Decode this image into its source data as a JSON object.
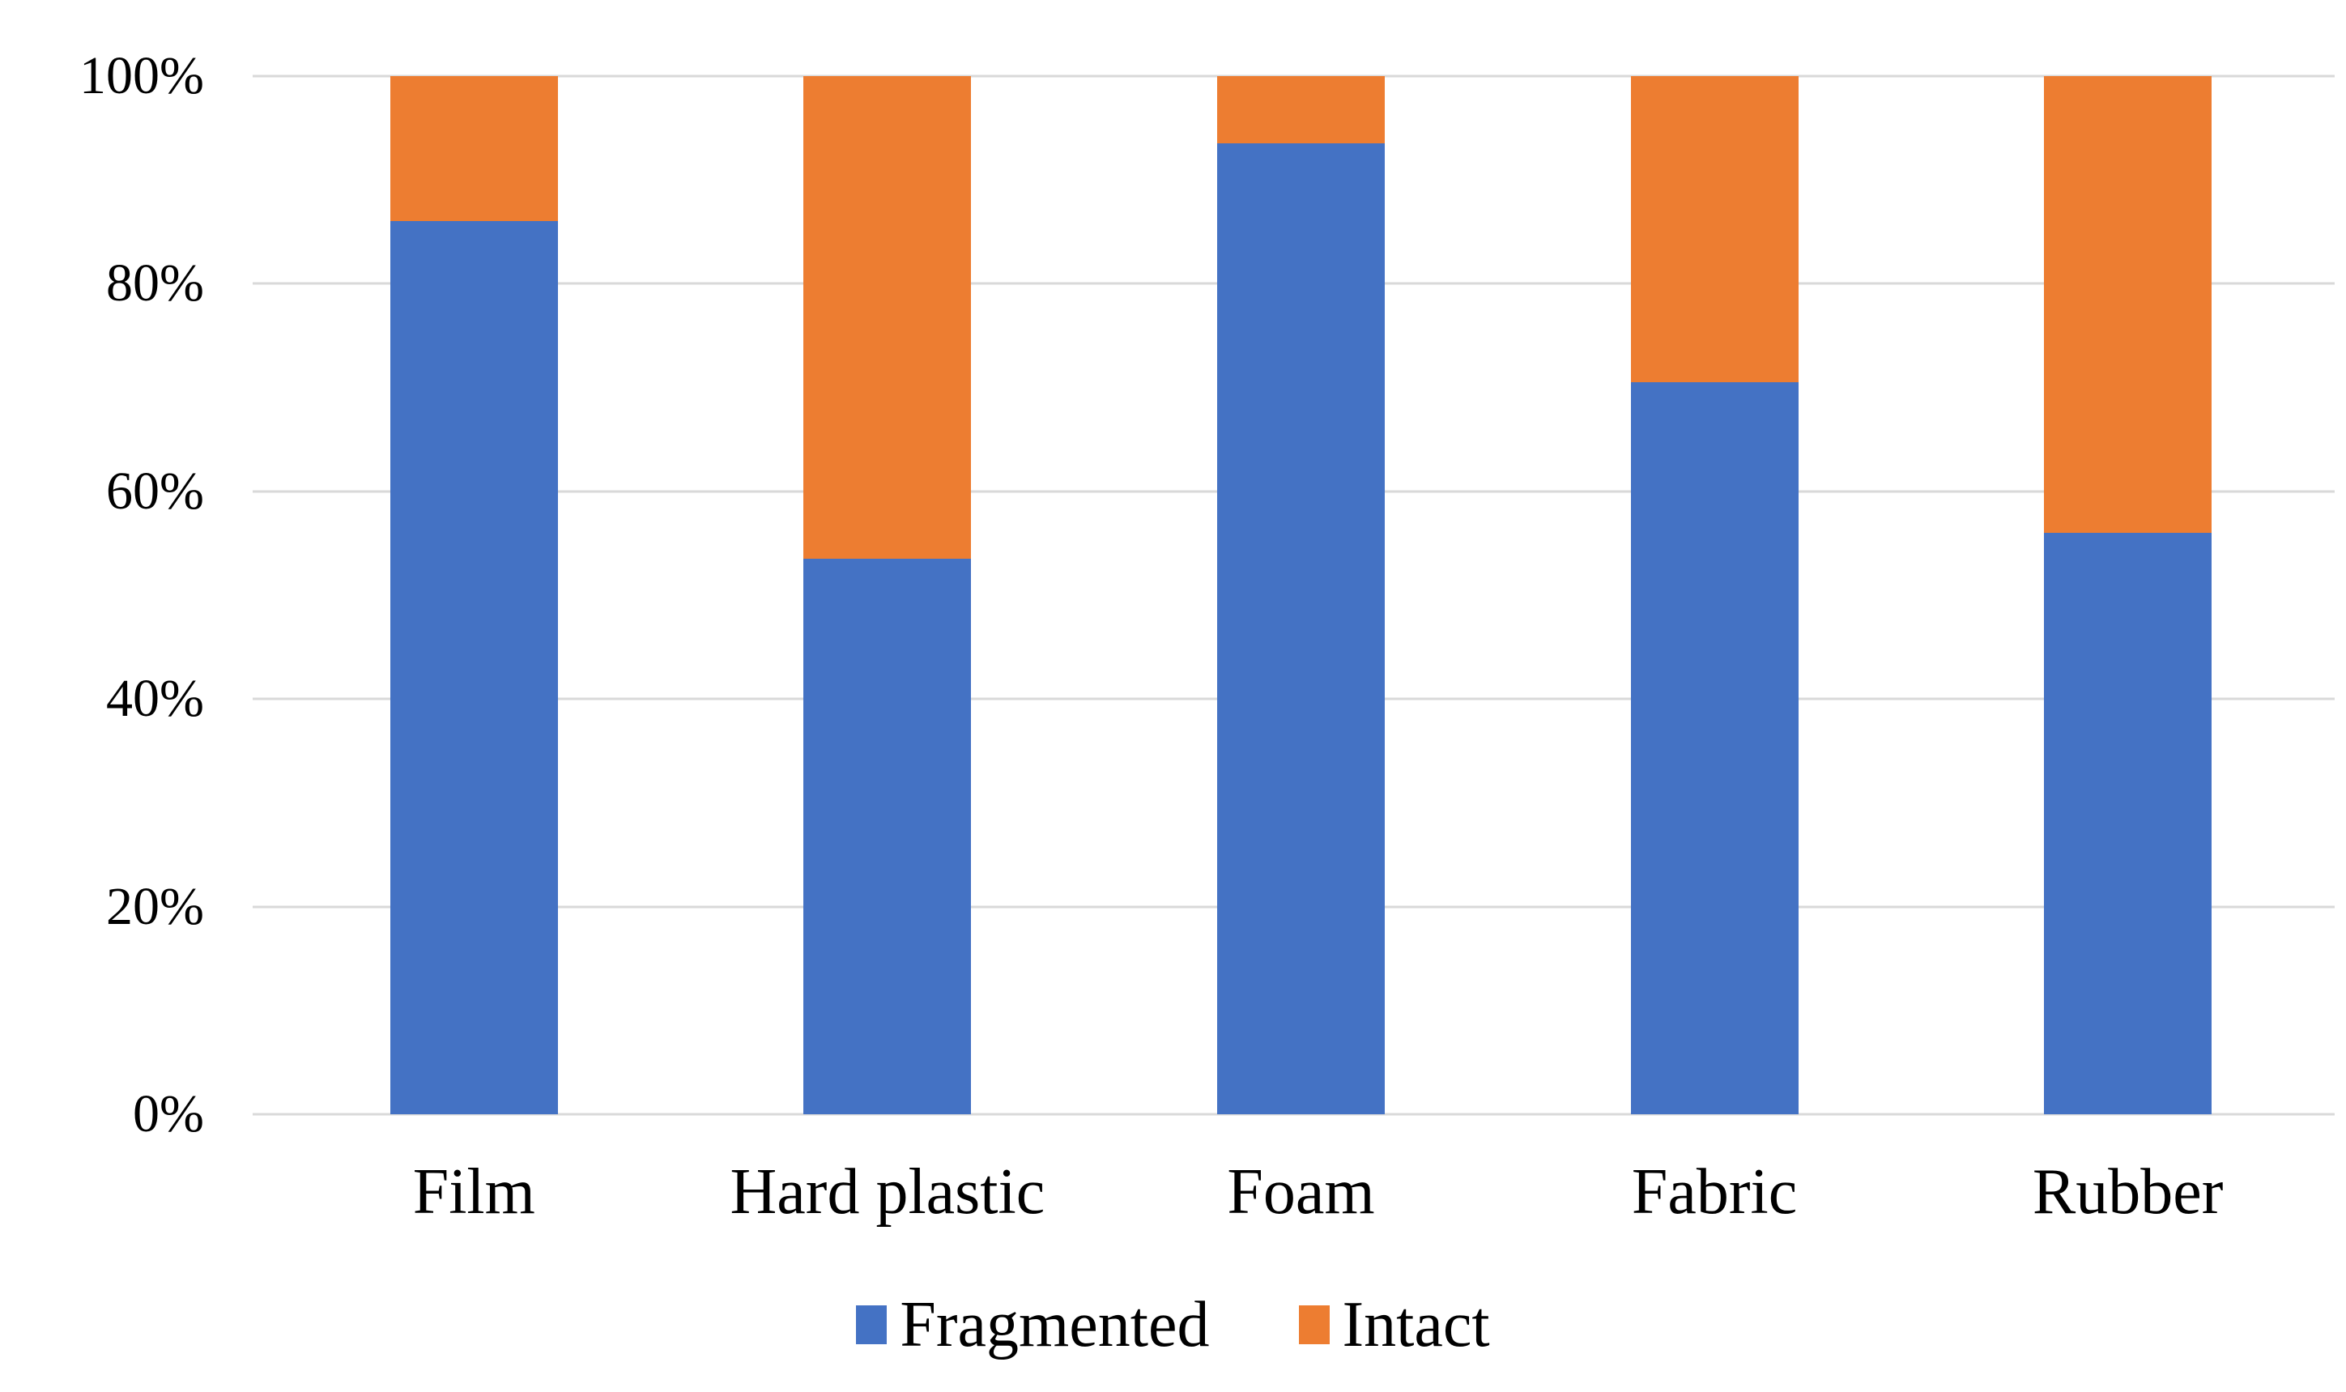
{
  "chart_data": {
    "type": "bar",
    "stacked": true,
    "stacking": "percent",
    "title": "",
    "xlabel": "",
    "ylabel": "",
    "categories": [
      "Film",
      "Hard plastic",
      "Foam",
      "Fabric",
      "Rubber"
    ],
    "series": [
      {
        "name": "Fragmented",
        "color": "#4472C4",
        "values": [
          86,
          53.5,
          93.5,
          70.5,
          56
        ]
      },
      {
        "name": "Intact",
        "color": "#ED7D31",
        "values": [
          14,
          46.5,
          6.5,
          29.5,
          44
        ]
      }
    ],
    "y_axis": {
      "min": 0,
      "max": 100,
      "unit": "%",
      "tick_values": [
        0,
        20,
        40,
        60,
        80,
        100
      ],
      "tick_labels": [
        "0%",
        "20%",
        "40%",
        "60%",
        "80%",
        "100%"
      ]
    },
    "legend": {
      "position": "bottom",
      "entries": [
        "Fragmented",
        "Intact"
      ]
    },
    "grid": true,
    "gridline_color": "#D9D9D9",
    "background": "#FFFFFF"
  }
}
